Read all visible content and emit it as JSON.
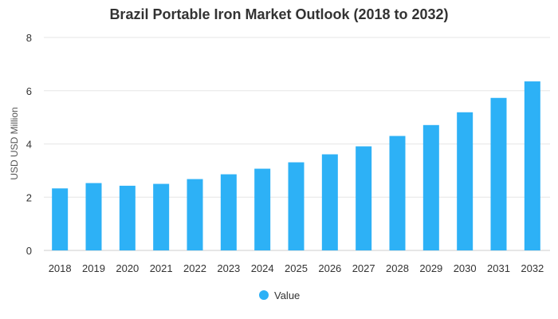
{
  "chart_data": {
    "type": "bar",
    "title": "Brazil Portable Iron Market Outlook (2018 to 2032)",
    "xlabel": "",
    "ylabel": "USD USD Million",
    "ylim": [
      0,
      8
    ],
    "yticks": [
      0,
      2,
      4,
      6,
      8
    ],
    "grid": true,
    "legend_position": "bottom-center",
    "categories": [
      "2018",
      "2019",
      "2020",
      "2021",
      "2022",
      "2023",
      "2024",
      "2025",
      "2026",
      "2027",
      "2028",
      "2029",
      "2030",
      "2031",
      "2032"
    ],
    "series": [
      {
        "name": "Value",
        "color": "#2db1f6",
        "values": [
          2.33,
          2.53,
          2.43,
          2.5,
          2.68,
          2.86,
          3.07,
          3.31,
          3.61,
          3.91,
          4.3,
          4.71,
          5.19,
          5.73,
          6.35
        ]
      }
    ]
  }
}
